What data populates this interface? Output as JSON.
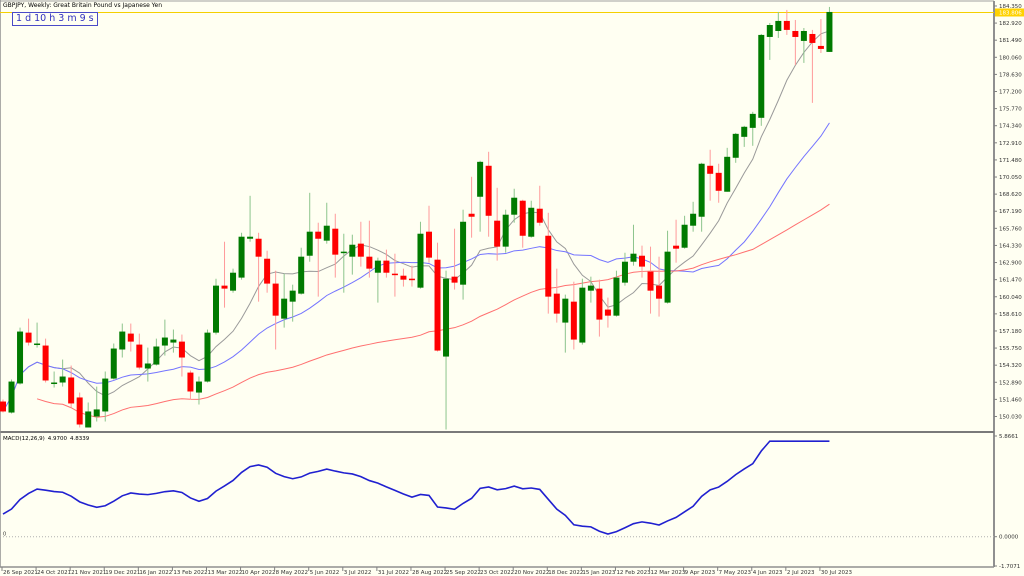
{
  "window": {
    "title": "GBPJPY, Weekly:  Great Britain Pound vs Japanese Yen",
    "timer": "1 d 10 h 3 m 9 s"
  },
  "colors": {
    "background": "#fffff2",
    "bull": "#007a00",
    "bear": "#ff0000",
    "bull_wick": "#8cc48c",
    "bear_wick": "#ff9a9a",
    "ma_fast": "#9a9a9a",
    "ma_mid": "#7474ff",
    "ma_slow": "#ff7070",
    "macd_line": "#2020d0",
    "price_line": "#f5d000"
  },
  "chart_data": {
    "type": "candlestick",
    "symbol": "GBPJPY",
    "timeframe": "Weekly",
    "current_price": "183.806",
    "price_axis_labels": [
      "184.350",
      "182.920",
      "181.490",
      "180.060",
      "178.630",
      "177.200",
      "175.770",
      "174.340",
      "172.910",
      "171.480",
      "170.050",
      "168.620",
      "167.190",
      "165.760",
      "164.330",
      "162.900",
      "161.470",
      "160.040",
      "158.610",
      "157.180",
      "155.750",
      "154.320",
      "152.890",
      "151.460",
      "150.030"
    ],
    "ylim": [
      148.9,
      184.85
    ],
    "date_axis_labels": [
      "26 Sep 2021",
      "24 Oct 2021",
      "21 Nov 2021",
      "19 Dec 2021",
      "16 Jan 2022",
      "13 Feb 2022",
      "13 Mar 2022",
      "10 Apr 2022",
      "8 May 2022",
      "5 Jun 2022",
      "3 Jul 2022",
      "31 Jul 2022",
      "28 Aug 2022",
      "25 Sep 2022",
      "23 Oct 2022",
      "20 Nov 2022",
      "18 Dec 2022",
      "15 Jan 2023",
      "12 Feb 2023",
      "12 Mar 2023",
      "9 Apr 2023",
      "7 May 2023",
      "4 Jun 2023",
      "2 Jul 2023",
      "30 Jul 2023"
    ],
    "ohlc": [
      [
        151.28,
        151.45,
        150.36,
        150.45
      ],
      [
        150.36,
        153.12,
        150.28,
        152.95
      ],
      [
        152.79,
        157.46,
        152.7,
        157.13
      ],
      [
        157.04,
        158.21,
        155.96,
        156.21
      ],
      [
        156.04,
        157.88,
        155.79,
        156.13
      ],
      [
        155.96,
        156.54,
        152.87,
        153.04
      ],
      [
        152.79,
        153.79,
        152.45,
        152.87
      ],
      [
        152.87,
        154.79,
        152.53,
        153.37
      ],
      [
        153.29,
        154.29,
        150.78,
        151.12
      ],
      [
        151.62,
        152.03,
        149.11,
        149.36
      ],
      [
        149.11,
        151.2,
        149.11,
        150.45
      ],
      [
        150.03,
        152.53,
        149.61,
        150.62
      ],
      [
        150.45,
        153.79,
        149.61,
        153.2
      ],
      [
        153.2,
        156.13,
        153.12,
        155.71
      ],
      [
        155.63,
        157.8,
        154.96,
        157.13
      ],
      [
        156.96,
        157.8,
        155.46,
        156.29
      ],
      [
        156.04,
        156.96,
        153.96,
        154.12
      ],
      [
        154.04,
        155.79,
        152.95,
        154.46
      ],
      [
        154.37,
        156.54,
        154.29,
        155.88
      ],
      [
        155.96,
        158.13,
        155.12,
        156.63
      ],
      [
        156.21,
        157.3,
        155.37,
        156.46
      ],
      [
        156.29,
        156.88,
        153.37,
        154.96
      ],
      [
        153.7,
        153.87,
        151.45,
        152.12
      ],
      [
        152.03,
        153.37,
        151.03,
        152.95
      ],
      [
        152.95,
        157.3,
        152.87,
        157.04
      ],
      [
        157.04,
        161.55,
        156.88,
        160.97
      ],
      [
        160.97,
        164.64,
        159.13,
        160.72
      ],
      [
        160.55,
        162.39,
        160.38,
        162.05
      ],
      [
        161.64,
        165.39,
        161.47,
        165.06
      ],
      [
        164.89,
        168.48,
        164.64,
        165.06
      ],
      [
        164.89,
        165.39,
        159.63,
        163.39
      ],
      [
        163.22,
        163.89,
        160.38,
        161.14
      ],
      [
        161.14,
        162.22,
        155.63,
        158.46
      ],
      [
        158.21,
        161.97,
        157.46,
        159.88
      ],
      [
        159.63,
        161.05,
        157.96,
        160.55
      ],
      [
        160.3,
        164.14,
        160.22,
        163.39
      ],
      [
        163.47,
        168.73,
        162.97,
        165.48
      ],
      [
        165.48,
        166.23,
        160.05,
        164.89
      ],
      [
        164.73,
        167.9,
        164.48,
        165.98
      ],
      [
        165.73,
        166.98,
        161.64,
        163.56
      ],
      [
        163.72,
        165.31,
        160.38,
        163.81
      ],
      [
        163.39,
        165.23,
        161.89,
        164.39
      ],
      [
        164.48,
        166.31,
        162.56,
        163.39
      ],
      [
        163.39,
        166.4,
        161.64,
        162.39
      ],
      [
        162.05,
        163.31,
        159.55,
        163.06
      ],
      [
        163.06,
        163.98,
        161.64,
        162.05
      ],
      [
        161.97,
        163.64,
        160.05,
        161.89
      ],
      [
        161.8,
        162.39,
        160.89,
        161.47
      ],
      [
        161.55,
        162.64,
        160.89,
        161.47
      ],
      [
        160.8,
        166.31,
        160.72,
        165.31
      ],
      [
        165.48,
        167.65,
        162.89,
        163.31
      ],
      [
        163.14,
        164.56,
        155.46,
        155.54
      ],
      [
        155.04,
        162.22,
        148.94,
        161.55
      ],
      [
        161.72,
        165.73,
        160.64,
        161.22
      ],
      [
        161.05,
        167.32,
        159.8,
        166.31
      ],
      [
        166.98,
        170.07,
        164.98,
        166.73
      ],
      [
        168.4,
        171.41,
        165.48,
        171.32
      ],
      [
        170.99,
        172.16,
        165.06,
        166.81
      ],
      [
        166.4,
        169.15,
        163.06,
        164.23
      ],
      [
        164.23,
        167.32,
        163.72,
        166.9
      ],
      [
        166.9,
        169.07,
        166.23,
        168.32
      ],
      [
        168.07,
        168.15,
        164.14,
        165.14
      ],
      [
        165.06,
        168.07,
        164.98,
        167.48
      ],
      [
        167.4,
        169.32,
        165.98,
        166.23
      ],
      [
        165.14,
        167.06,
        158.63,
        160.05
      ],
      [
        160.3,
        162.39,
        157.88,
        158.63
      ],
      [
        157.88,
        160.22,
        155.37,
        159.88
      ],
      [
        159.63,
        161.3,
        155.63,
        156.46
      ],
      [
        156.21,
        161.55,
        156.04,
        160.8
      ],
      [
        160.55,
        161.72,
        159.55,
        160.97
      ],
      [
        160.72,
        161.47,
        156.71,
        158.13
      ],
      [
        158.97,
        159.97,
        157.46,
        158.46
      ],
      [
        158.46,
        162.22,
        158.38,
        161.64
      ],
      [
        161.22,
        163.72,
        160.97,
        162.97
      ],
      [
        162.97,
        166.06,
        162.64,
        163.64
      ],
      [
        163.47,
        164.31,
        161.64,
        162.56
      ],
      [
        162.14,
        164.23,
        158.63,
        160.55
      ],
      [
        160.97,
        163.39,
        158.38,
        159.88
      ],
      [
        159.55,
        165.56,
        159.47,
        163.81
      ],
      [
        164.31,
        166.48,
        162.89,
        164.06
      ],
      [
        164.14,
        166.81,
        164.06,
        166.06
      ],
      [
        165.98,
        167.98,
        165.48,
        166.98
      ],
      [
        166.73,
        171.24,
        165.48,
        171.16
      ],
      [
        170.99,
        172.33,
        168.07,
        170.32
      ],
      [
        170.4,
        171.16,
        167.9,
        168.9
      ],
      [
        168.82,
        172.49,
        168.82,
        171.74
      ],
      [
        171.66,
        173.74,
        171.24,
        173.66
      ],
      [
        173.41,
        174.33,
        172.57,
        174.25
      ],
      [
        174.16,
        175.5,
        172.66,
        175.33
      ],
      [
        175.0,
        182.01,
        174.33,
        181.93
      ],
      [
        181.76,
        182.93,
        179.84,
        182.76
      ],
      [
        182.26,
        183.85,
        181.68,
        183.1
      ],
      [
        183.1,
        184.02,
        181.93,
        182.35
      ],
      [
        182.26,
        183.18,
        179.42,
        181.76
      ],
      [
        181.43,
        182.51,
        179.59,
        182.26
      ],
      [
        182.01,
        182.35,
        176.25,
        181.26
      ],
      [
        181.01,
        183.26,
        180.42,
        180.76
      ],
      [
        180.51,
        184.27,
        180.51,
        183.85
      ]
    ],
    "macd": {
      "label": "MACD(12,26,9)",
      "value_main": "4.9700",
      "value_signal": "4.8339",
      "axis_labels": [
        "5.8661",
        "0.0000",
        "-1.7071"
      ],
      "ylim": [
        -1.7071,
        5.8661
      ]
    }
  }
}
